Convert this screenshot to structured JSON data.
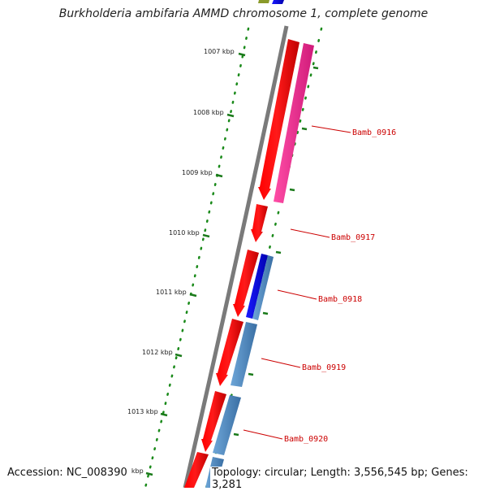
{
  "title": "Burkholderia ambifaria AMMD chromosome 1, complete genome",
  "footer": {
    "accession": "Accession: NC_008390",
    "info": "Topology: circular; Length: 3,556,545 bp; Genes: 3,281"
  },
  "ticks": [
    "1007 kbp",
    "1008 kbp",
    "1009 kbp",
    "1010 kbp",
    "1011 kbp",
    "1012 kbp",
    "1013 kbp",
    "1014 kbp"
  ],
  "genes": [
    "Bamb_0916",
    "Bamb_0917",
    "Bamb_0918",
    "Bamb_0919",
    "Bamb_0920"
  ],
  "colors": {
    "backbone": "#777777",
    "tick": "#1a7a1a",
    "cds_red": "#ff0000",
    "cds_magenta": "#ff3399",
    "cds_blue": "#0000ee",
    "cds_steel": "#4a86c0",
    "cds_olive": "#8a9a2a",
    "label": "#cc0000"
  }
}
